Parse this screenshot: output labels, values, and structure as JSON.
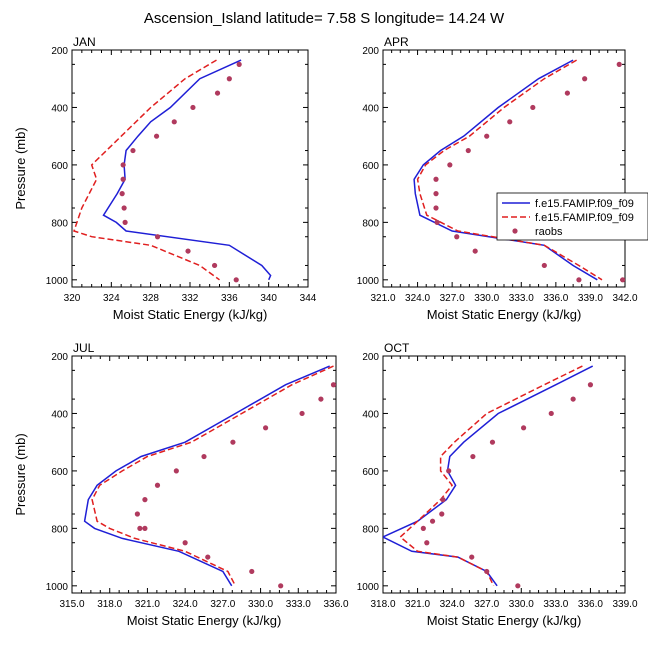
{
  "figure_title": "Ascension_Island  latitude= 7.58 S longitude= 14.24 W",
  "colors": {
    "model1": "#1f1fd6",
    "model2": "#e01f1f",
    "obs": "#b03a5e"
  },
  "legend": {
    "entries": [
      "f.e15.FAMIP.f09_f09",
      "f.e15.FAMIP.f09_f09",
      "raobs"
    ]
  },
  "chart_data": [
    {
      "type": "line",
      "panel_label": "JAN",
      "xlabel": "Moist Static Energy (kJ/kg)",
      "ylabel": "Pressure (mb)",
      "xlim": [
        320,
        344
      ],
      "ylim": [
        200,
        1025
      ],
      "y_inverted": true,
      "xticks": [
        "320",
        "324",
        "328",
        "332",
        "336",
        "340",
        "344"
      ],
      "yticks": [
        "200",
        "400",
        "600",
        "800",
        "1000"
      ],
      "series": [
        {
          "style": "solid",
          "color": "#1f1fd6",
          "x": [
            337.2,
            333.0,
            330.0,
            328.0,
            326.7,
            325.5,
            325.3,
            325.4,
            324.6,
            323.2,
            324.5,
            325.5,
            336.0,
            339.3,
            340.2,
            340.0
          ],
          "y": [
            235,
            300,
            400,
            450,
            500,
            550,
            600,
            650,
            700,
            775,
            800,
            830,
            880,
            950,
            985,
            1000
          ]
        },
        {
          "style": "dashed",
          "color": "#e01f1f",
          "x": [
            334.7,
            331.5,
            328.0,
            325.0,
            322.0,
            322.5,
            321.0,
            320.2,
            322.0,
            328.0,
            333.0,
            335.0
          ],
          "y": [
            235,
            300,
            400,
            500,
            600,
            650,
            750,
            830,
            850,
            880,
            950,
            1000
          ]
        },
        {
          "style": "markers",
          "color": "#b03a5e",
          "x": [
            337.0,
            336.0,
            334.8,
            332.3,
            330.4,
            328.6,
            326.2,
            325.2,
            325.2,
            325.1,
            325.3,
            325.4,
            328.7,
            331.8,
            334.5,
            336.7
          ],
          "y": [
            250,
            300,
            350,
            400,
            450,
            500,
            550,
            600,
            650,
            700,
            750,
            800,
            850,
            900,
            950,
            1000
          ]
        }
      ]
    },
    {
      "type": "line",
      "panel_label": "APR",
      "xlabel": "Moist Static Energy (kJ/kg)",
      "ylabel": "",
      "xlim": [
        321,
        342
      ],
      "ylim": [
        200,
        1025
      ],
      "y_inverted": true,
      "xticks": [
        "321.0",
        "324.0",
        "327.0",
        "330.0",
        "333.0",
        "336.0",
        "339.0",
        "342.0"
      ],
      "yticks": [
        "200",
        "400",
        "600",
        "800",
        "1000"
      ],
      "series": [
        {
          "style": "solid",
          "color": "#1f1fd6",
          "x": [
            337.5,
            334.5,
            331.0,
            328.0,
            326.0,
            324.5,
            323.7,
            323.8,
            324.2,
            327.0,
            335.0,
            337.5,
            339.6
          ],
          "y": [
            235,
            300,
            400,
            500,
            550,
            600,
            650,
            700,
            775,
            830,
            880,
            950,
            1000
          ]
        },
        {
          "style": "dashed",
          "color": "#e01f1f",
          "x": [
            337.8,
            335.0,
            331.5,
            328.5,
            326.3,
            324.7,
            324.0,
            324.2,
            324.8,
            327.5,
            335.0,
            338.0,
            340.0
          ],
          "y": [
            235,
            300,
            400,
            500,
            550,
            600,
            650,
            700,
            775,
            830,
            880,
            950,
            1000
          ]
        },
        {
          "style": "markers",
          "color": "#b03a5e",
          "x": [
            341.5,
            338.5,
            337.0,
            334.0,
            332.0,
            330.0,
            328.4,
            326.8,
            325.6,
            325.6,
            325.6,
            325.7,
            327.4,
            329.0,
            335.0,
            338.0,
            341.8
          ],
          "y": [
            250,
            300,
            350,
            400,
            450,
            500,
            550,
            600,
            650,
            700,
            750,
            800,
            850,
            900,
            950,
            1000,
            1000
          ]
        }
      ]
    },
    {
      "type": "line",
      "panel_label": "JUL",
      "xlabel": "Moist Static Energy (kJ/kg)",
      "ylabel": "Pressure (mb)",
      "xlim": [
        315,
        336
      ],
      "ylim": [
        200,
        1025
      ],
      "y_inverted": true,
      "xticks": [
        "315.0",
        "318.0",
        "321.0",
        "324.0",
        "327.0",
        "330.0",
        "333.0",
        "336.0"
      ],
      "yticks": [
        "200",
        "400",
        "600",
        "800",
        "1000"
      ],
      "series": [
        {
          "style": "solid",
          "color": "#1f1fd6",
          "x": [
            335.5,
            332.0,
            328.0,
            324.0,
            320.5,
            318.5,
            317.0,
            316.3,
            316.0,
            316.8,
            319.0,
            323.5,
            327.0,
            327.7
          ],
          "y": [
            235,
            300,
            400,
            500,
            550,
            600,
            650,
            700,
            775,
            800,
            835,
            880,
            950,
            1000
          ]
        },
        {
          "style": "dashed",
          "color": "#e01f1f",
          "x": [
            335.8,
            332.5,
            328.5,
            324.5,
            321.0,
            319.0,
            317.2,
            316.6,
            317.0,
            318.0,
            320.0,
            324.0,
            327.4,
            328.0
          ],
          "y": [
            235,
            300,
            400,
            500,
            550,
            600,
            650,
            700,
            775,
            800,
            835,
            880,
            950,
            1000
          ]
        },
        {
          "style": "markers",
          "color": "#b03a5e",
          "x": [
            335.8,
            334.8,
            333.3,
            330.4,
            327.8,
            325.5,
            323.3,
            321.8,
            320.8,
            320.2,
            320.4,
            320.8,
            324.0,
            325.8,
            329.3,
            331.6
          ],
          "y": [
            300,
            350,
            400,
            450,
            500,
            550,
            600,
            650,
            700,
            750,
            800,
            800,
            850,
            900,
            950,
            1000
          ]
        }
      ]
    },
    {
      "type": "line",
      "panel_label": "OCT",
      "xlabel": "Moist Static Energy (kJ/kg)",
      "ylabel": "",
      "xlim": [
        318,
        339
      ],
      "ylim": [
        200,
        1025
      ],
      "y_inverted": true,
      "xticks": [
        "318.0",
        "321.0",
        "324.0",
        "327.0",
        "330.0",
        "333.0",
        "336.0",
        "339.0"
      ],
      "yticks": [
        "200",
        "400",
        "600",
        "800",
        "1000"
      ],
      "series": [
        {
          "style": "solid",
          "color": "#1f1fd6",
          "x": [
            336.2,
            333.0,
            328.0,
            325.0,
            323.8,
            323.6,
            324.3,
            323.5,
            321.0,
            318.0,
            320.5,
            324.5,
            327.0,
            327.9
          ],
          "y": [
            235,
            300,
            400,
            500,
            550,
            600,
            650,
            700,
            775,
            830,
            880,
            900,
            950,
            1000
          ]
        },
        {
          "style": "dashed",
          "color": "#e01f1f",
          "x": [
            335.3,
            332.0,
            327.0,
            324.2,
            323.0,
            323.0,
            324.0,
            323.0,
            321.0,
            319.5,
            321.0,
            324.5,
            327.0,
            327.6
          ],
          "y": [
            235,
            300,
            400,
            500,
            550,
            600,
            650,
            700,
            775,
            830,
            880,
            900,
            950,
            1000
          ]
        },
        {
          "style": "markers",
          "color": "#b03a5e",
          "x": [
            336.0,
            334.5,
            332.6,
            330.2,
            327.5,
            325.8,
            323.7,
            323.2,
            323.1,
            322.3,
            321.5,
            321.8,
            325.7,
            327.0,
            329.7
          ],
          "y": [
            300,
            350,
            400,
            450,
            500,
            550,
            600,
            700,
            750,
            775,
            800,
            850,
            900,
            950,
            1000
          ]
        }
      ]
    }
  ]
}
